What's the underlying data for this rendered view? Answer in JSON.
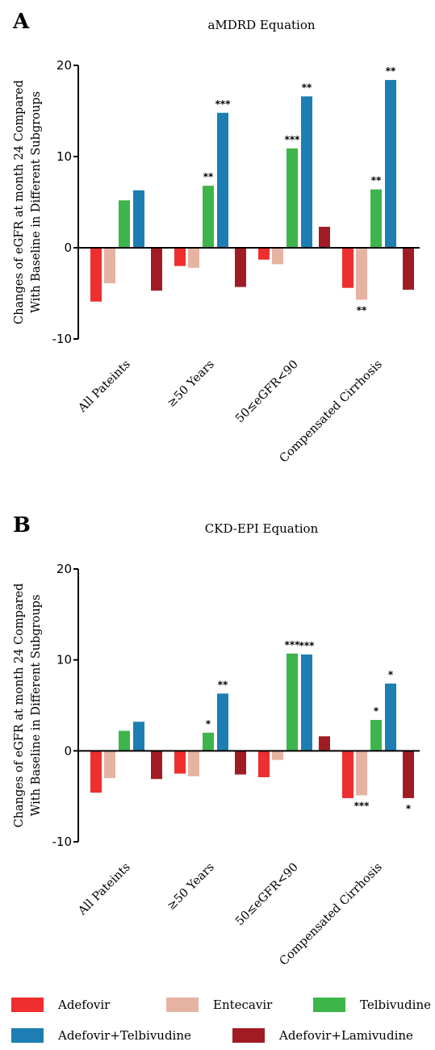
{
  "colors": {
    "Adefovir": "#ee2e2f",
    "Entecavir": "#e6b3a3",
    "Telbivudine": "#3db54a",
    "Adefovir+Telbivudine": "#1c7eb3",
    "Adefovir+Lamivudine": "#a01c24"
  },
  "legend": {
    "items": [
      "Adefovir",
      "Entecavir",
      "Telbivudine",
      "Adefovir+Telbivudine",
      "Adefovir+Lamivudine"
    ]
  },
  "chart_data": [
    {
      "type": "bar",
      "panel": "A",
      "title": "aMDRD Equation",
      "ylabel_line1": "Changes of eGFR at month 24 Compared",
      "ylabel_line2": "With Baseline in Different Subgroups",
      "ylim": [
        -10,
        20
      ],
      "yticks": [
        -10,
        0,
        10,
        20
      ],
      "categories": [
        "All Pateints",
        "≥50 Years",
        "50≤eGFR<90",
        "Compensated Cirrhosis"
      ],
      "series": [
        {
          "name": "Adefovir",
          "values": [
            -5.9,
            -2.0,
            -1.3,
            -4.4
          ],
          "sig": [
            "",
            "",
            "",
            ""
          ]
        },
        {
          "name": "Entecavir",
          "values": [
            -3.9,
            -2.2,
            -1.8,
            -5.7
          ],
          "sig": [
            "",
            "",
            "",
            "**"
          ]
        },
        {
          "name": "Telbivudine",
          "values": [
            5.2,
            6.8,
            10.9,
            6.4
          ],
          "sig": [
            "",
            "**",
            "***",
            "**"
          ]
        },
        {
          "name": "Adefovir+Telbivudine",
          "values": [
            6.3,
            14.8,
            16.6,
            18.4
          ],
          "sig": [
            "",
            "***",
            "**",
            "**"
          ]
        },
        {
          "name": "Adefovir+Lamivudine",
          "values": [
            -4.7,
            -4.3,
            2.3,
            -4.6
          ],
          "sig": [
            "",
            "",
            "",
            ""
          ]
        }
      ]
    },
    {
      "type": "bar",
      "panel": "B",
      "title": "CKD-EPI Equation",
      "ylabel_line1": "Changes of eGFR at month 24 Compared",
      "ylabel_line2": "With Baseline in Different Subgroups",
      "ylim": [
        -10,
        20
      ],
      "yticks": [
        -10,
        0,
        10,
        20
      ],
      "categories": [
        "All Pateints",
        "≥50 Years",
        "50≤eGFR<90",
        "Compensated Cirrhosis"
      ],
      "series": [
        {
          "name": "Adefovir",
          "values": [
            -4.6,
            -2.5,
            -2.9,
            -5.2
          ],
          "sig": [
            "",
            "",
            "",
            ""
          ]
        },
        {
          "name": "Entecavir",
          "values": [
            -3.0,
            -2.8,
            -1.0,
            -4.9
          ],
          "sig": [
            "",
            "",
            "",
            "***"
          ]
        },
        {
          "name": "Telbivudine",
          "values": [
            2.2,
            2.0,
            10.7,
            3.4
          ],
          "sig": [
            "",
            "*",
            "***",
            "*"
          ]
        },
        {
          "name": "Adefovir+Telbivudine",
          "values": [
            3.2,
            6.3,
            10.6,
            7.4
          ],
          "sig": [
            "",
            "**",
            "***",
            "*"
          ]
        },
        {
          "name": "Adefovir+Lamivudine",
          "values": [
            -3.1,
            -2.6,
            1.6,
            -5.2
          ],
          "sig": [
            "",
            "",
            "",
            "*"
          ]
        }
      ]
    }
  ]
}
